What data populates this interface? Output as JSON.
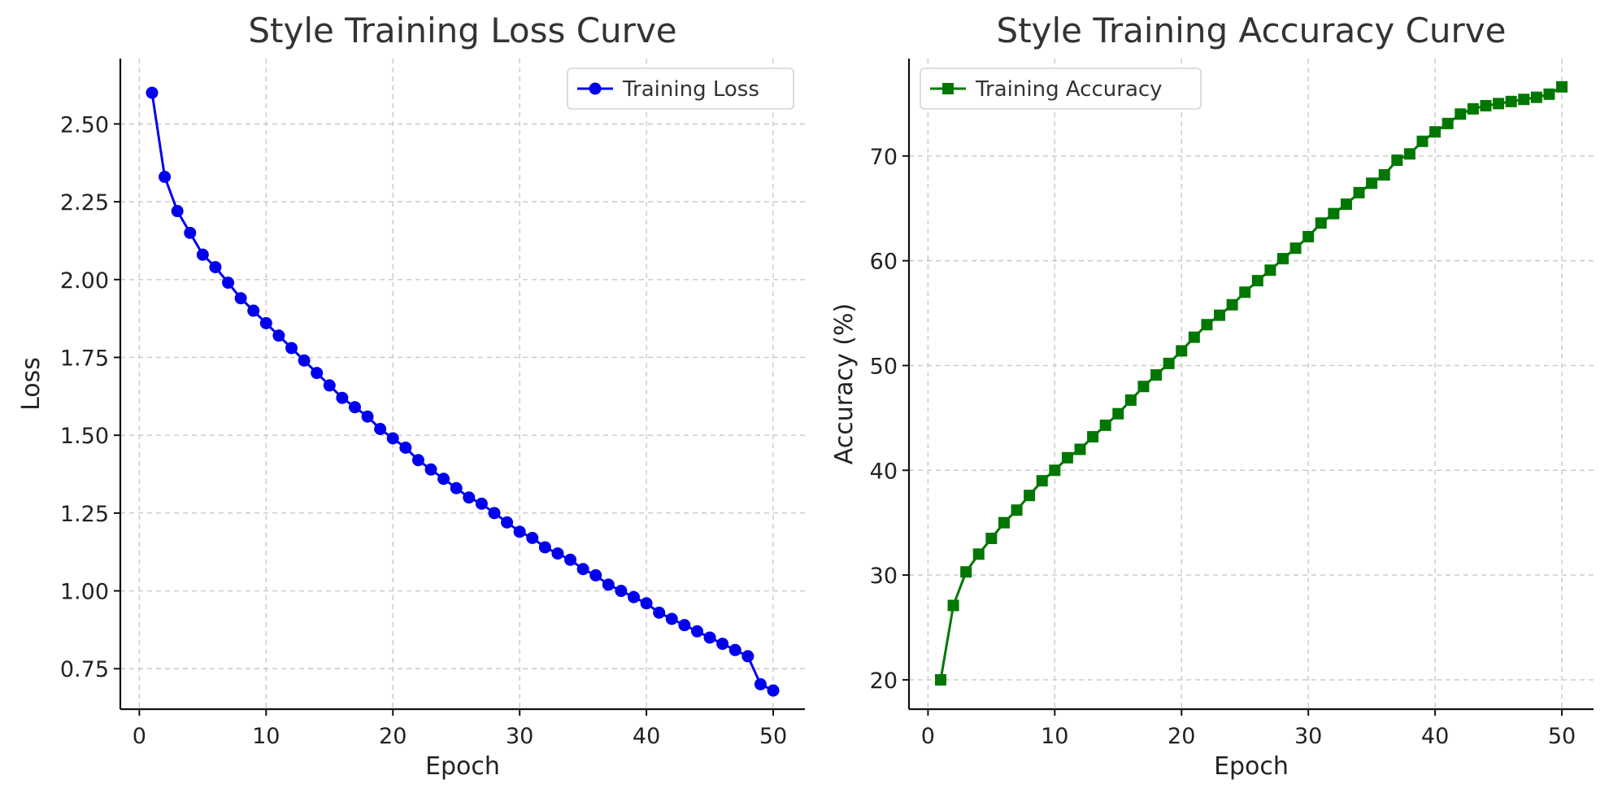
{
  "chart_data": [
    {
      "type": "line",
      "title": "Style Training Loss Curve",
      "xlabel": "Epoch",
      "ylabel": "Loss",
      "xlim": [
        -1.5,
        52.5
      ],
      "ylim": [
        0.62,
        2.71
      ],
      "xticks": [
        0,
        10,
        20,
        30,
        40,
        50
      ],
      "xtick_labels": [
        "0",
        "10",
        "20",
        "30",
        "40",
        "50"
      ],
      "yticks": [
        0.75,
        1.0,
        1.25,
        1.5,
        1.75,
        2.0,
        2.25,
        2.5
      ],
      "ytick_labels": [
        "0.75",
        "1.00",
        "1.25",
        "1.50",
        "1.75",
        "2.00",
        "2.25",
        "2.50"
      ],
      "grid": true,
      "legend_position": "top-right",
      "series": [
        {
          "name": "Training Loss",
          "color": "#0000ee",
          "marker": "circle",
          "x": [
            1,
            2,
            3,
            4,
            5,
            6,
            7,
            8,
            9,
            10,
            11,
            12,
            13,
            14,
            15,
            16,
            17,
            18,
            19,
            20,
            21,
            22,
            23,
            24,
            25,
            26,
            27,
            28,
            29,
            30,
            31,
            32,
            33,
            34,
            35,
            36,
            37,
            38,
            39,
            40,
            41,
            42,
            43,
            44,
            45,
            46,
            47,
            48,
            49,
            50
          ],
          "values": [
            2.6,
            2.33,
            2.22,
            2.15,
            2.08,
            2.04,
            1.99,
            1.94,
            1.9,
            1.86,
            1.82,
            1.78,
            1.74,
            1.7,
            1.66,
            1.62,
            1.59,
            1.56,
            1.52,
            1.49,
            1.46,
            1.42,
            1.39,
            1.36,
            1.33,
            1.3,
            1.28,
            1.25,
            1.22,
            1.19,
            1.17,
            1.14,
            1.12,
            1.1,
            1.07,
            1.05,
            1.02,
            1.0,
            0.98,
            0.96,
            0.93,
            0.91,
            0.89,
            0.87,
            0.85,
            0.83,
            0.81,
            0.79,
            0.7,
            0.68
          ]
        }
      ]
    },
    {
      "type": "line",
      "title": "Style Training Accuracy Curve",
      "xlabel": "Epoch",
      "ylabel": "Accuracy (%)",
      "xlim": [
        -1.5,
        52.5
      ],
      "ylim": [
        17.2,
        79.3
      ],
      "xticks": [
        0,
        10,
        20,
        30,
        40,
        50
      ],
      "xtick_labels": [
        "0",
        "10",
        "20",
        "30",
        "40",
        "50"
      ],
      "yticks": [
        20,
        30,
        40,
        50,
        60,
        70
      ],
      "ytick_labels": [
        "20",
        "30",
        "40",
        "50",
        "60",
        "70"
      ],
      "grid": true,
      "legend_position": "top-left",
      "series": [
        {
          "name": "Training Accuracy",
          "color": "#007700",
          "marker": "square",
          "x": [
            1,
            2,
            3,
            4,
            5,
            6,
            7,
            8,
            9,
            10,
            11,
            12,
            13,
            14,
            15,
            16,
            17,
            18,
            19,
            20,
            21,
            22,
            23,
            24,
            25,
            26,
            27,
            28,
            29,
            30,
            31,
            32,
            33,
            34,
            35,
            36,
            37,
            38,
            39,
            40,
            41,
            42,
            43,
            44,
            45,
            46,
            47,
            48,
            49,
            50
          ],
          "values": [
            20.0,
            27.1,
            30.3,
            32.0,
            33.5,
            35.0,
            36.2,
            37.6,
            39.0,
            40.0,
            41.2,
            42.0,
            43.2,
            44.3,
            45.4,
            46.7,
            48.0,
            49.1,
            50.2,
            51.4,
            52.7,
            53.9,
            54.8,
            55.8,
            57.0,
            58.1,
            59.1,
            60.2,
            61.2,
            62.3,
            63.6,
            64.5,
            65.4,
            66.5,
            67.4,
            68.2,
            69.6,
            70.2,
            71.4,
            72.3,
            73.1,
            74.0,
            74.5,
            74.8,
            75.0,
            75.2,
            75.4,
            75.6,
            75.9,
            76.6
          ]
        }
      ]
    }
  ]
}
